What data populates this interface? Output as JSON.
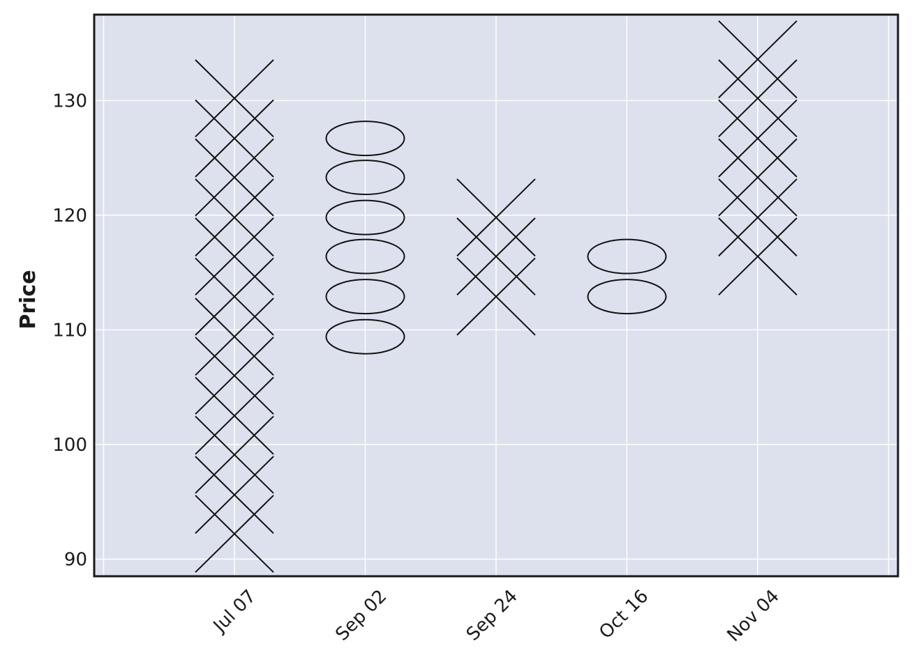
{
  "chart_data": {
    "type": "point-and-figure",
    "title": "",
    "xlabel": "",
    "ylabel": "Price",
    "ylim": [
      88.5,
      137.5
    ],
    "yticks": [
      90,
      100,
      110,
      120,
      130
    ],
    "box_size": 3.46,
    "grid": true,
    "legend": "none",
    "colors": {
      "plot_background": "#dce1ed",
      "grid": "#ffffff",
      "marks": "#111111",
      "frame": "#1a1a1a"
    },
    "categories": [
      "Jul 07",
      "Sep 02",
      "Sep 24",
      "Oct 16",
      "Nov 04"
    ],
    "columns": [
      {
        "label": "Jul 07",
        "type": "X",
        "boxes": [
          92.2,
          95.6,
          99.1,
          102.5,
          106.0,
          109.4,
          112.9,
          116.4,
          119.8,
          123.3,
          126.7,
          130.2
        ]
      },
      {
        "label": "Sep 02",
        "type": "O",
        "boxes": [
          109.4,
          112.9,
          116.4,
          119.8,
          123.3,
          126.7
        ]
      },
      {
        "label": "Sep 24",
        "type": "X",
        "boxes": [
          112.9,
          116.4,
          119.8
        ]
      },
      {
        "label": "Oct 16",
        "type": "O",
        "boxes": [
          112.9,
          116.4
        ]
      },
      {
        "label": "Nov 04",
        "type": "X",
        "boxes": [
          116.4,
          119.8,
          123.3,
          126.7,
          130.2,
          133.6
        ]
      }
    ]
  }
}
